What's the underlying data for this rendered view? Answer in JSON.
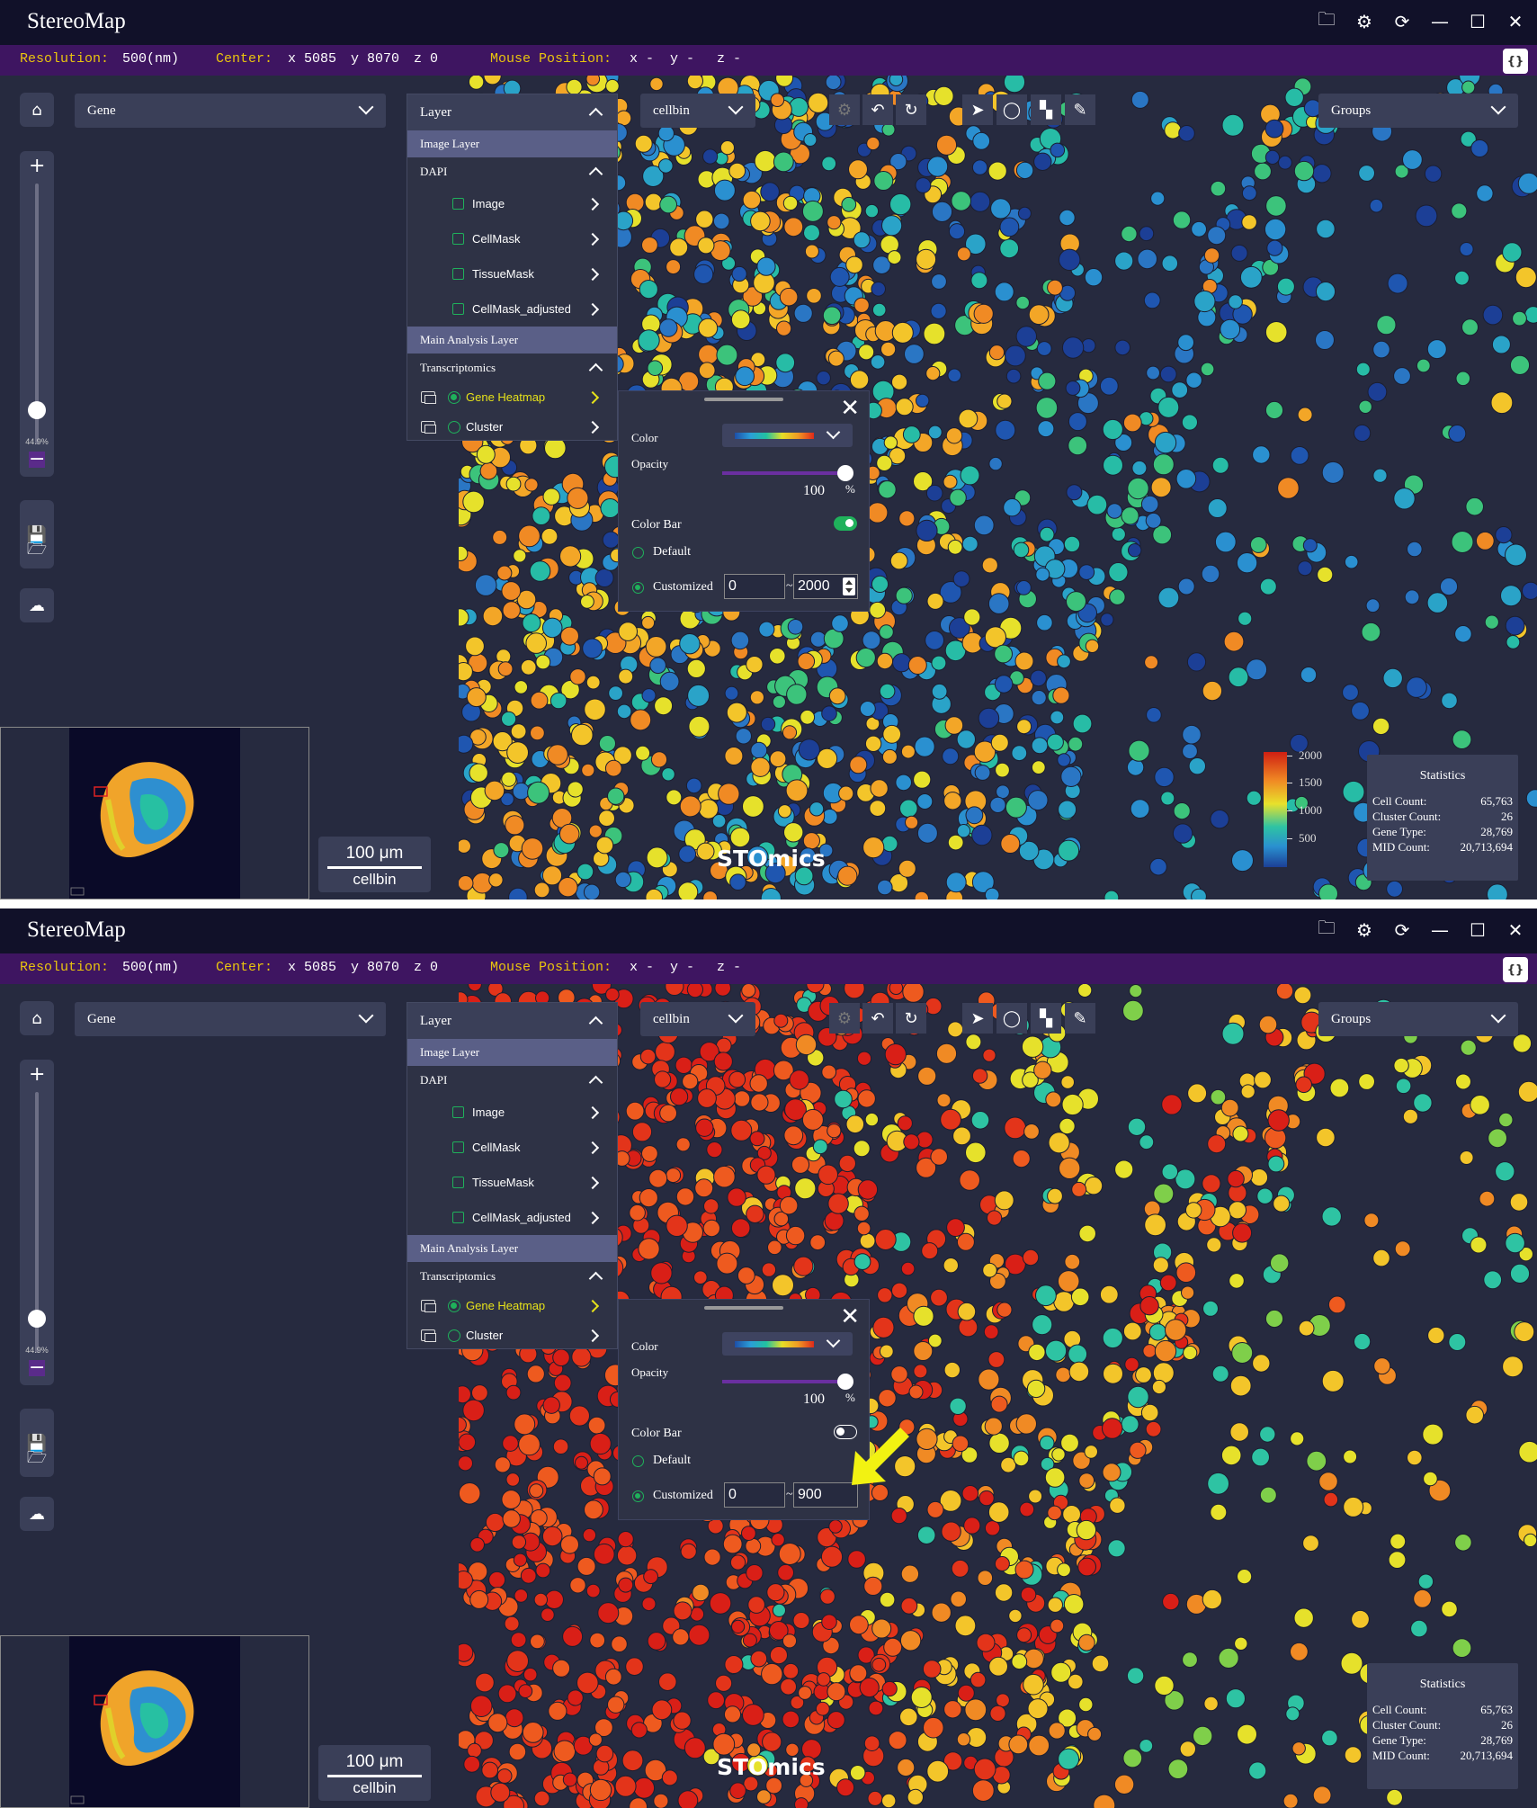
{
  "app_title": "StereoMap",
  "window_buttons": [
    "folder-open-icon",
    "gear-icon",
    "refresh-icon",
    "minimize-icon",
    "maximize-icon",
    "close-icon"
  ],
  "infobar": {
    "resolution_label": "Resolution:",
    "resolution_value": "500(nm)",
    "center_label": "Center:",
    "center_x": "x 5085",
    "center_y": "y 8070",
    "center_z": "z 0",
    "mouse_label": "Mouse Position:",
    "mouse_x": "x -",
    "mouse_y": "y -",
    "mouse_z": "z -",
    "right_button": "{}"
  },
  "gene_dropdown": "Gene",
  "cellbin_dropdown": "cellbin",
  "groups_dropdown": "Groups",
  "zoom_percent": "44.9%",
  "layer_panel": {
    "title": "Layer",
    "image_layer_section": "Image Layer",
    "dapi_group": "DAPI",
    "image_items": [
      "Image",
      "CellMask",
      "TissueMask",
      "CellMask_adjusted"
    ],
    "main_section": "Main Analysis Layer",
    "transcriptomics_group": "Transcriptomics",
    "analysis_items": [
      "Gene Heatmap",
      "Cluster"
    ]
  },
  "scale_bar": {
    "length": "100 μm",
    "unit": "cellbin"
  },
  "stats": {
    "title": "Statistics",
    "rows": [
      {
        "label": "Cell Count:",
        "value": "65,763"
      },
      {
        "label": "Cluster Count:",
        "value": "26"
      },
      {
        "label": "Gene Type:",
        "value": "28,769"
      },
      {
        "label": "MID Count:",
        "value": "20,713,694"
      }
    ]
  },
  "colorbar_labels": [
    "2000",
    "1500",
    "1000",
    "500"
  ],
  "watermark": "STOmics",
  "config": {
    "color_label": "Color",
    "opacity_label": "Opacity",
    "opacity_value": "100",
    "opacity_unit": "%",
    "colorbar_label": "Color Bar",
    "default_label": "Default",
    "customized_label": "Customized",
    "range_sep": "~"
  },
  "panels": [
    {
      "id": "before",
      "colorbar_on": true,
      "range_min": "0",
      "range_max": "2000"
    },
    {
      "id": "after",
      "colorbar_on": false,
      "range_min": "0",
      "range_max": "900"
    }
  ],
  "colors": {
    "titlebar": "#111129",
    "infobar": "#3e1561",
    "accent_green": "#1fb15b",
    "highlight_yellow": "#e6e21a",
    "background": "#262a3f"
  }
}
